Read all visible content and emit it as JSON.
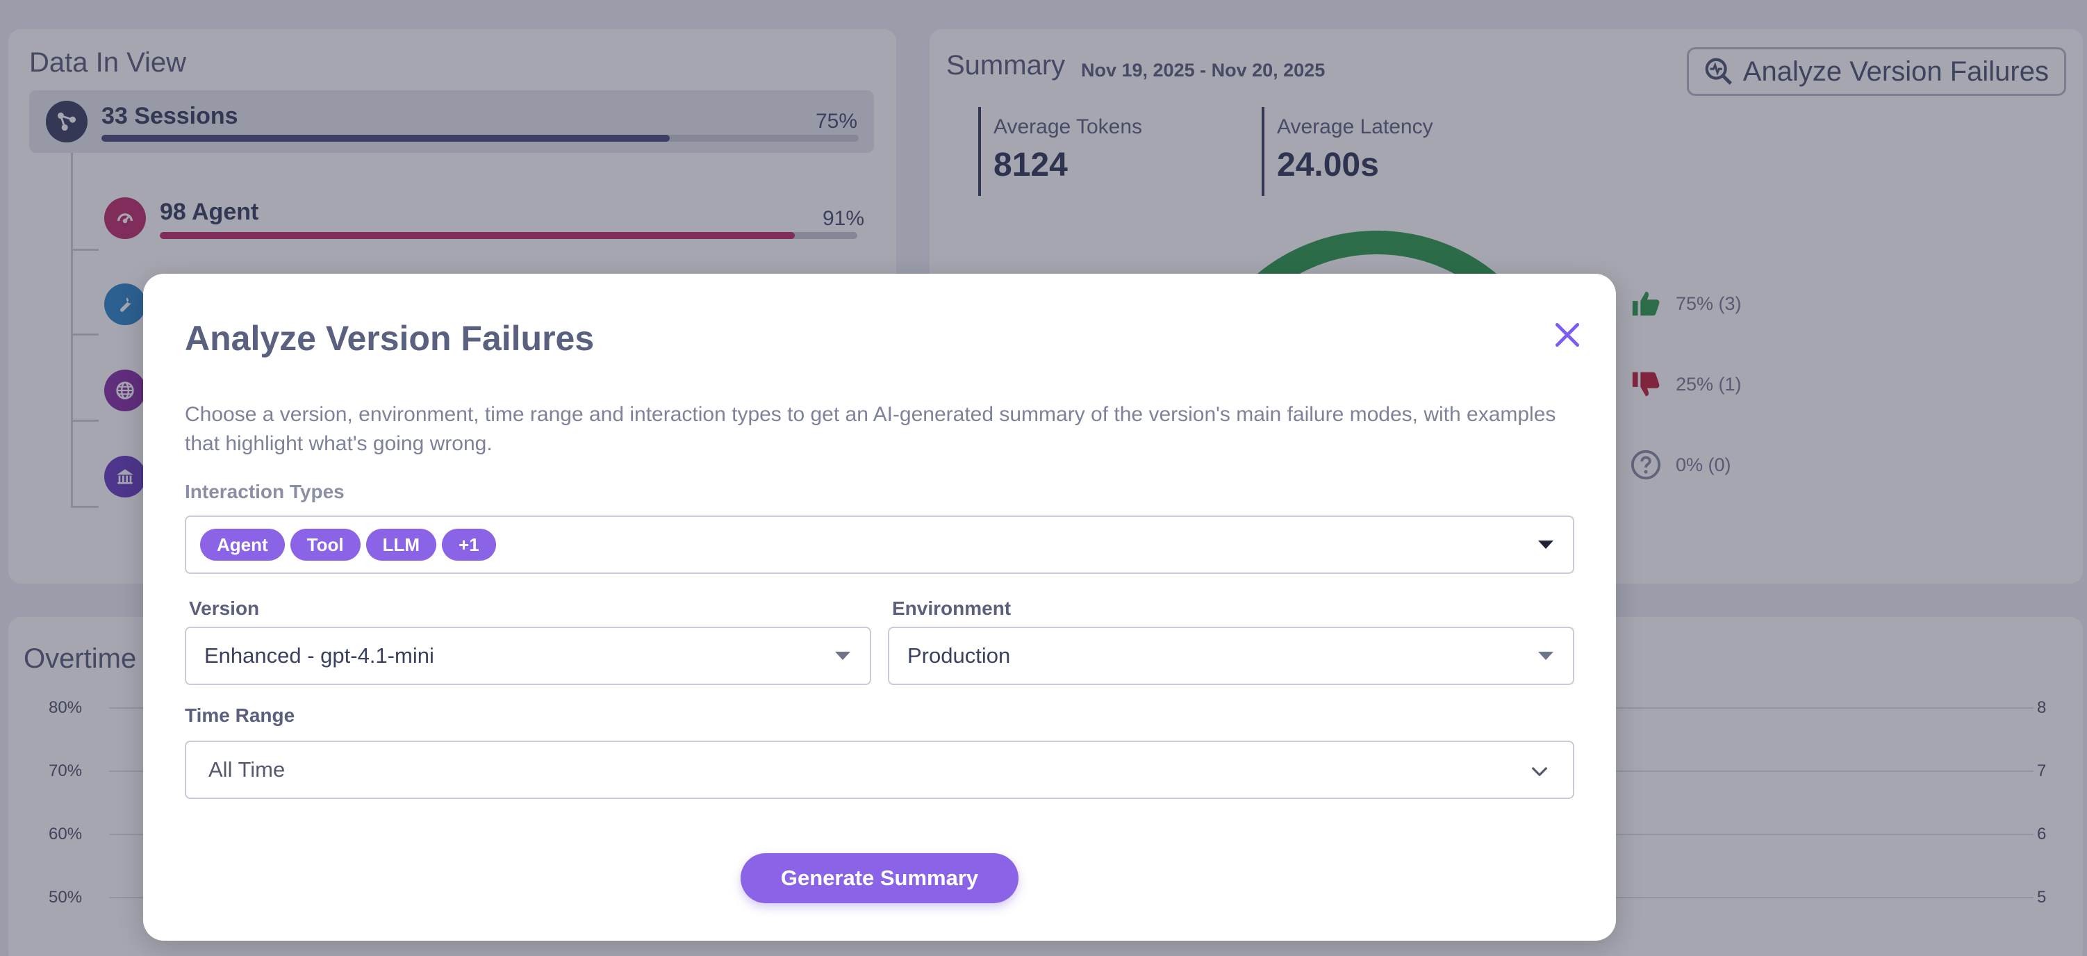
{
  "data_in_view": {
    "title": "Data In View",
    "sessions": {
      "label": "33 Sessions",
      "pct": "75%",
      "fill": 0.75,
      "color": "#4b4e7a"
    },
    "agent": {
      "label": "98 Agent",
      "pct": "91%",
      "fill": 0.91,
      "color": "#c0306f"
    },
    "icons": [
      "sessions-tree-icon",
      "agent-icon",
      "tool-icon",
      "globe-icon",
      "bank-icon"
    ]
  },
  "summary": {
    "title": "Summary",
    "dates": "Nov 19, 2025 - Nov 20, 2025",
    "analyze_button": "Analyze Version Failures",
    "avg_tokens_label": "Average Tokens",
    "avg_tokens_value": "8124",
    "avg_latency_label": "Average Latency",
    "avg_latency_value": "24.00s",
    "feedback": [
      {
        "text": "75% (3)",
        "color": "#2f9b4f",
        "icon": "thumbs-up-icon"
      },
      {
        "text": "25% (1)",
        "color": "#c2203a",
        "icon": "thumbs-down-icon"
      },
      {
        "text": "0% (0)",
        "color": "#8a8fa5",
        "icon": "question-icon"
      }
    ]
  },
  "overtime": {
    "title": "Overtime",
    "left_ticks": [
      "80%",
      "70%",
      "60%",
      "50%"
    ],
    "right_ticks": [
      "8",
      "7",
      "6",
      "5"
    ]
  },
  "modal": {
    "title": "Analyze Version Failures",
    "description": "Choose a version, environment, time range and interaction types to get an AI-generated summary of the version's main failure modes, with examples that highlight what's going wrong.",
    "interaction_types_label": "Interaction Types",
    "interaction_types_chips": [
      "Agent",
      "Tool",
      "LLM",
      "+1"
    ],
    "version_label": "Version",
    "version_value": "Enhanced - gpt-4.1-mini",
    "environment_label": "Environment",
    "environment_value": "Production",
    "time_range_label": "Time Range",
    "time_range_value": "All Time",
    "generate_button": "Generate Summary"
  },
  "colors": {
    "accent": "#8a63e6",
    "close_icon": "#7b5cf0"
  }
}
